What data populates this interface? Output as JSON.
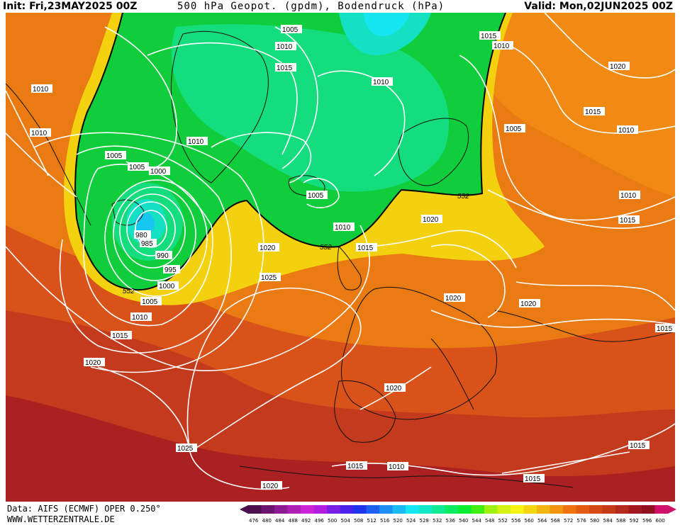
{
  "header": {
    "init": "Init: Fri,23MAY2025 00Z",
    "title": "500 hPa Geopot. (gpdm), Bodendruck (hPa)",
    "valid": "Valid: Mon,02JUN2025 00Z"
  },
  "footer": {
    "source": "Data: AIFS (ECMWF) OPER 0.250°",
    "website": "WWW.WETTERZENTRALE.DE"
  },
  "colorbar": {
    "ticks": [
      "476",
      "480",
      "484",
      "488",
      "492",
      "496",
      "500",
      "504",
      "508",
      "512",
      "516",
      "520",
      "524",
      "528",
      "532",
      "536",
      "540",
      "544",
      "548",
      "552",
      "556",
      "560",
      "564",
      "568",
      "572",
      "576",
      "580",
      "584",
      "588",
      "592",
      "596",
      "600"
    ],
    "colors": [
      "#4b0f4d",
      "#6b1470",
      "#8c1a91",
      "#ad1fb5",
      "#cc24d6",
      "#b01ce0",
      "#7a1ee6",
      "#4a22ea",
      "#2233ee",
      "#1f60f0",
      "#1c8df2",
      "#19b9f4",
      "#16e5f6",
      "#13e8c8",
      "#10ea95",
      "#0deb62",
      "#0aed30",
      "#40ef10",
      "#9ef110",
      "#d6f210",
      "#f7f40e",
      "#f5d50e",
      "#f3b40e",
      "#f2940e",
      "#ef720e",
      "#e45a10",
      "#d54a14",
      "#c53a18",
      "#b42a1c",
      "#a21a20",
      "#90101f",
      "#d0106a"
    ],
    "arrow_left_color": "#4b0f4d",
    "arrow_right_color": "#d0106a"
  },
  "map": {
    "contour_552_label": "552",
    "isobar_labels": [
      {
        "text": "1005"
      },
      {
        "text": "1010"
      },
      {
        "text": "1015"
      },
      {
        "text": "1010"
      },
      {
        "text": "1015"
      },
      {
        "text": "1010"
      },
      {
        "text": "1010"
      },
      {
        "text": "1010"
      },
      {
        "text": "1020"
      },
      {
        "text": "1015"
      },
      {
        "text": "1010"
      },
      {
        "text": "1005"
      },
      {
        "text": "1005"
      },
      {
        "text": "1005"
      },
      {
        "text": "1000"
      },
      {
        "text": "1010"
      },
      {
        "text": "1005"
      },
      {
        "text": "1010"
      },
      {
        "text": "1015"
      },
      {
        "text": "1020"
      },
      {
        "text": "1020"
      },
      {
        "text": "980"
      },
      {
        "text": "985"
      },
      {
        "text": "990"
      },
      {
        "text": "995"
      },
      {
        "text": "1000"
      },
      {
        "text": "1005"
      },
      {
        "text": "1010"
      },
      {
        "text": "1015"
      },
      {
        "text": "1020"
      },
      {
        "text": "1025"
      },
      {
        "text": "1020"
      },
      {
        "text": "1020"
      },
      {
        "text": "1010"
      },
      {
        "text": "1015"
      },
      {
        "text": "1020"
      },
      {
        "text": "1025"
      },
      {
        "text": "1015"
      },
      {
        "text": "1010"
      },
      {
        "text": "1015"
      },
      {
        "text": "1020"
      },
      {
        "text": "1015"
      },
      {
        "text": "1010"
      },
      {
        "text": "1015"
      }
    ]
  }
}
